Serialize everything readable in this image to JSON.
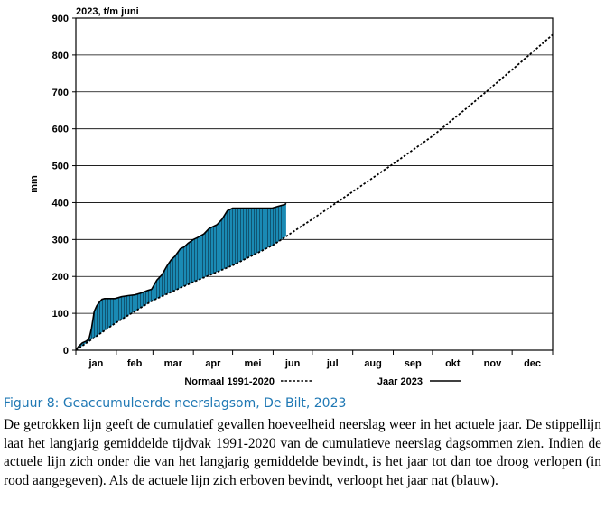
{
  "chart_data": {
    "type": "area",
    "title": "2023, t/m juni",
    "ylabel": "mm",
    "ylim": [
      0,
      900
    ],
    "yticks": [
      0,
      100,
      200,
      300,
      400,
      500,
      600,
      700,
      800,
      900
    ],
    "xlim": [
      0,
      365
    ],
    "months": [
      "jan",
      "feb",
      "mar",
      "apr",
      "mei",
      "jun",
      "jul",
      "aug",
      "sep",
      "okt",
      "nov",
      "dec"
    ],
    "colors": {
      "wet": "#1a8ab4",
      "dry": "#e03030",
      "line": "#000000"
    },
    "legend": {
      "normal": "Normaal 1991-2020",
      "actual": "Jaar 2023"
    },
    "series": [
      {
        "name": "Normaal 1991-2020",
        "style": "dotted",
        "x": [
          0,
          31,
          59,
          90,
          120,
          151,
          181,
          212,
          243,
          273,
          304,
          334,
          365
        ],
        "values": [
          0,
          75,
          135,
          185,
          230,
          285,
          355,
          430,
          505,
          580,
          670,
          760,
          855
        ]
      },
      {
        "name": "Jaar 2023",
        "style": "solid",
        "x": [
          0,
          2,
          5,
          8,
          10,
          12,
          14,
          16,
          18,
          20,
          22,
          25,
          30,
          35,
          40,
          45,
          50,
          55,
          58,
          62,
          66,
          70,
          73,
          76,
          80,
          83,
          86,
          90,
          93,
          98,
          102,
          108,
          112,
          116,
          120,
          125,
          130,
          140,
          150,
          155,
          160,
          161
        ],
        "values": [
          0,
          10,
          20,
          25,
          30,
          60,
          105,
          120,
          130,
          138,
          140,
          140,
          140,
          145,
          148,
          150,
          155,
          162,
          165,
          190,
          205,
          230,
          245,
          255,
          275,
          280,
          290,
          300,
          305,
          315,
          330,
          340,
          355,
          378,
          385,
          385,
          385,
          385,
          385,
          390,
          395,
          398
        ]
      }
    ]
  },
  "caption": "Figuur 8: Geaccumuleerde neerslagsom, De Bilt, 2023",
  "description": "De getrokken lijn geeft de cumulatief gevallen hoeveelheid neerslag weer in het actuele jaar. De stippellijn laat het langjarig gemiddelde tijdvak 1991-2020 van de cumulatieve neerslag dagsommen zien. Indien de actuele lijn zich onder die van het langjarig gemiddelde bevindt, is het jaar tot dan toe droog verlopen (in rood aangegeven). Als de actuele lijn zich erboven bevindt, verloopt het jaar nat (blauw)."
}
